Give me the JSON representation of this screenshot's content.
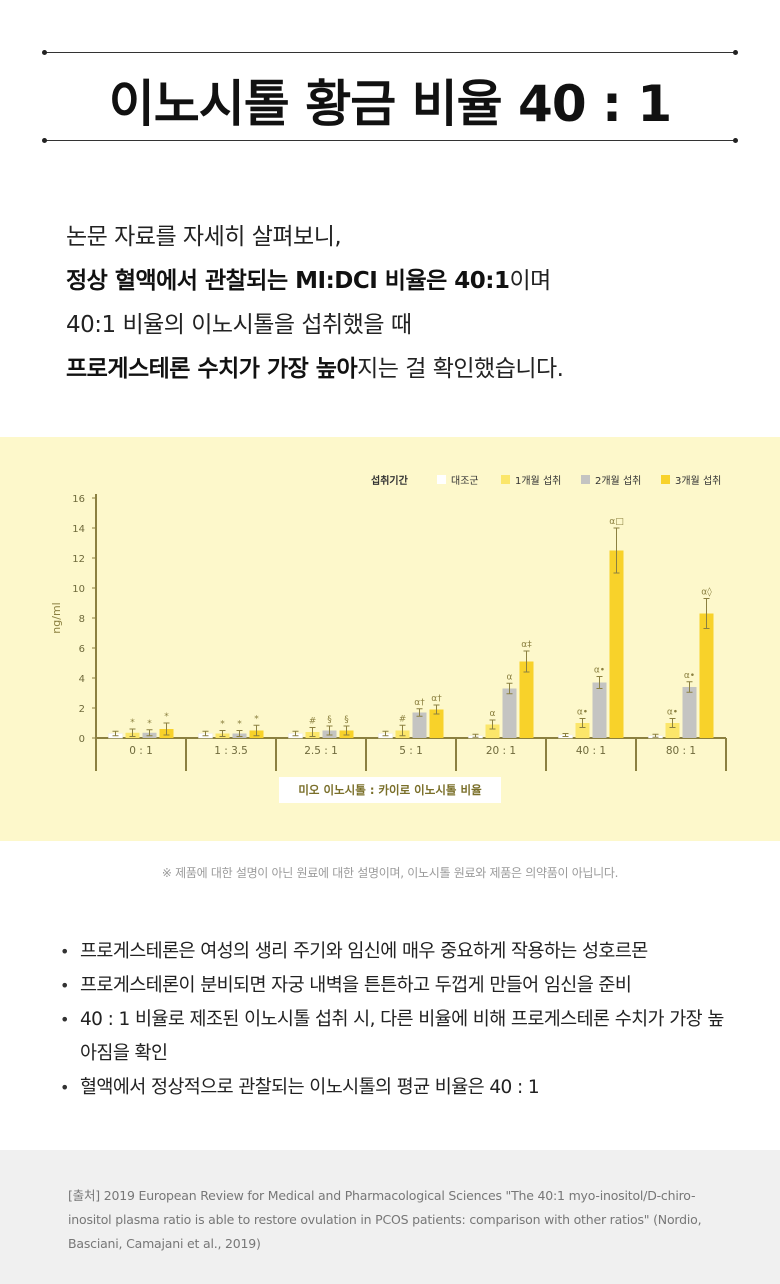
{
  "title": {
    "main": "이노시톨 황금 비율",
    "ratio": "40 : 1"
  },
  "intro": {
    "line1": "논문 자료를 자세히 살펴보니,",
    "line2_bold": "정상 혈액에서 관찰되는 MI:DCI 비율은 40:1",
    "line2_tail": "이며",
    "line3": "40:1 비율의 이노시톨을 섭취했을 때",
    "line4_bold": "프로게스테론 수치가 가장 높아",
    "line4_tail": "지는 걸 확인했습니다."
  },
  "chart_data": {
    "type": "bar",
    "legend_title": "섭취기간",
    "ylabel": "ng/ml",
    "xlabel": "미오 이노시톨 : 카이로 이노시톨 비율",
    "ylim": [
      0,
      16
    ],
    "yticks": [
      0,
      2,
      4,
      6,
      8,
      10,
      12,
      14,
      16
    ],
    "categories": [
      "0 : 1",
      "1 : 3.5",
      "2.5 : 1",
      "5 : 1",
      "20 : 1",
      "40 : 1",
      "80 : 1"
    ],
    "series": [
      {
        "name": "대조군",
        "color": "#ffffff",
        "values": [
          0.3,
          0.3,
          0.3,
          0.3,
          0.15,
          0.2,
          0.15
        ],
        "errors": [
          0.15,
          0.15,
          0.15,
          0.15,
          0.1,
          0.1,
          0.1
        ],
        "marks": [
          "",
          "",
          "",
          "",
          "",
          "",
          ""
        ]
      },
      {
        "name": "1개월 섭취",
        "color": "#fbe66a",
        "values": [
          0.35,
          0.3,
          0.4,
          0.5,
          0.9,
          1.0,
          1.0
        ],
        "errors": [
          0.25,
          0.2,
          0.3,
          0.35,
          0.3,
          0.3,
          0.3
        ],
        "marks": [
          "*",
          "*",
          "#",
          "#",
          "α",
          "α•",
          "α•"
        ]
      },
      {
        "name": "2개월 섭취",
        "color": "#c4c4c2",
        "values": [
          0.35,
          0.3,
          0.5,
          1.7,
          3.3,
          3.7,
          3.4
        ],
        "errors": [
          0.2,
          0.2,
          0.3,
          0.25,
          0.35,
          0.4,
          0.35
        ],
        "marks": [
          "*",
          "*",
          "§",
          "α†",
          "α",
          "α•",
          "α•"
        ]
      },
      {
        "name": "3개월 섭취",
        "color": "#f8d22a",
        "values": [
          0.6,
          0.5,
          0.5,
          1.9,
          5.1,
          12.5,
          8.3
        ],
        "errors": [
          0.4,
          0.35,
          0.3,
          0.3,
          0.7,
          1.5,
          1.0
        ],
        "marks": [
          "*",
          "*",
          "§",
          "α†",
          "α‡",
          "α□",
          "α◊"
        ]
      }
    ]
  },
  "disclaimer": "※ 제품에 대한 설명이 아닌 원료에 대한 설명이며, 이노시톨 원료와 제품은 의약품이 아닙니다.",
  "bullets": [
    "프로게스테론은 여성의 생리 주기와 임신에 매우 중요하게 작용하는 성호르몬",
    "프로게스테론이 분비되면 자궁 내벽을 튼튼하고 두껍게 만들어 임신을 준비",
    "40 : 1 비율로 제조된 이노시톨 섭취 시, 다른 비율에 비해 프로게스테론 수치가 가장 높아짐을 확인",
    "혈액에서 정상적으로 관찰되는 이노시톨의 평균 비율은 40 : 1"
  ],
  "source": "[출처] 2019 European Review for Medical and Pharmacological Sciences \"The 40:1 myo-inositol/D-chiro-inositol plasma ratio is able to restore ovulation in PCOS patients: comparison with other ratios\" (Nordio, Basciani, Camajani et al., 2019)"
}
